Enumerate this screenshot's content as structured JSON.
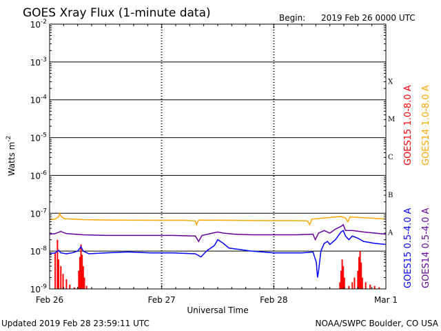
{
  "chart_data": {
    "type": "line",
    "title": "GOES Xray Flux (1-minute data)",
    "begin_label": "Begin:",
    "begin_value": "2019 Feb 26 0000 UTC",
    "xlabel": "Universal Time",
    "ylabel": "Watts m",
    "ylabel_exp": "-2",
    "y_scale": "log",
    "ylim": [
      1e-09,
      0.01
    ],
    "xlim": [
      "2019-02-26 00:00",
      "2019-03-01 00:00"
    ],
    "x_ticks": [
      {
        "label": "Feb 26",
        "day": 0
      },
      {
        "label": "Feb 27",
        "day": 1
      },
      {
        "label": "Feb 28",
        "day": 2
      },
      {
        "label": "Mar 1",
        "day": 3
      }
    ],
    "y_ticks": [
      {
        "base": "10",
        "exp": "-2",
        "value": 0.01
      },
      {
        "base": "10",
        "exp": "-3",
        "value": 0.001
      },
      {
        "base": "10",
        "exp": "-4",
        "value": 0.0001
      },
      {
        "base": "10",
        "exp": "-5",
        "value": 1e-05
      },
      {
        "base": "10",
        "exp": "-6",
        "value": 1e-06
      },
      {
        "base": "10",
        "exp": "-7",
        "value": 1e-07
      },
      {
        "base": "10",
        "exp": "-8",
        "value": 1e-08
      },
      {
        "base": "10",
        "exp": "-9",
        "value": 1e-09
      }
    ],
    "flare_classes": [
      {
        "label": "X",
        "value": 0.000316
      },
      {
        "label": "M",
        "value": 3.16e-05
      },
      {
        "label": "C",
        "value": 3.16e-06
      },
      {
        "label": "B",
        "value": 3.16e-07
      },
      {
        "label": "A",
        "value": 3.16e-08
      }
    ],
    "series": [
      {
        "name": "GOES15 1.0-8.0 A",
        "color": "#ff0000",
        "style": "impulses",
        "points": [
          [
            0.05,
            9e-09
          ],
          [
            0.07,
            2e-08
          ],
          [
            0.08,
            6e-09
          ],
          [
            0.1,
            4e-09
          ],
          [
            0.12,
            2.5e-09
          ],
          [
            0.15,
            1.8e-09
          ],
          [
            0.18,
            1.3e-09
          ],
          [
            0.22,
            1.1e-09
          ],
          [
            0.26,
            3e-09
          ],
          [
            0.27,
            7e-09
          ],
          [
            0.28,
            1.5e-08
          ],
          [
            0.29,
            8e-09
          ],
          [
            0.3,
            4e-09
          ],
          [
            0.31,
            2e-09
          ],
          [
            0.33,
            1.2e-09
          ],
          [
            2.59,
            1.5e-09
          ],
          [
            2.6,
            3e-09
          ],
          [
            2.61,
            6e-09
          ],
          [
            2.62,
            4e-09
          ],
          [
            2.63,
            2e-09
          ],
          [
            2.67,
            1.2e-09
          ],
          [
            2.7,
            1.5e-09
          ],
          [
            2.72,
            2e-09
          ],
          [
            2.75,
            3e-09
          ],
          [
            2.76,
            7e-09
          ],
          [
            2.77,
            1e-08
          ],
          [
            2.78,
            5e-09
          ],
          [
            2.79,
            2e-09
          ],
          [
            2.82,
            1.5e-09
          ],
          [
            2.86,
            1.3e-09
          ],
          [
            2.9,
            1.2e-09
          ],
          [
            2.94,
            1.1e-09
          ]
        ]
      },
      {
        "name": "GOES14 1.0-8.0 A",
        "color": "#ffa500",
        "style": "line",
        "points": [
          [
            0.0,
            6.8e-08
          ],
          [
            0.05,
            7e-08
          ],
          [
            0.08,
            8e-08
          ],
          [
            0.09,
            1e-07
          ],
          [
            0.1,
            8.5e-08
          ],
          [
            0.13,
            7.2e-08
          ],
          [
            0.3,
            6.8e-08
          ],
          [
            0.6,
            6.6e-08
          ],
          [
            0.95,
            6.5e-08
          ],
          [
            1.2,
            6.5e-08
          ],
          [
            1.3,
            6.3e-08
          ],
          [
            1.31,
            5e-08
          ],
          [
            1.33,
            6.6e-08
          ],
          [
            1.6,
            6.5e-08
          ],
          [
            1.9,
            6.4e-08
          ],
          [
            2.15,
            6.4e-08
          ],
          [
            2.3,
            6.3e-08
          ],
          [
            2.32,
            5e-08
          ],
          [
            2.34,
            7e-08
          ],
          [
            2.45,
            7.5e-08
          ],
          [
            2.55,
            8e-08
          ],
          [
            2.6,
            8.2e-08
          ],
          [
            2.64,
            7.5e-08
          ],
          [
            2.66,
            6e-08
          ],
          [
            2.68,
            8e-08
          ],
          [
            2.75,
            7.8e-08
          ],
          [
            2.85,
            7.5e-08
          ],
          [
            2.95,
            7.2e-08
          ],
          [
            3.0,
            7e-08
          ]
        ]
      },
      {
        "name": "GOES15 0.5-4.0 A",
        "color": "#0000ff",
        "style": "line",
        "points": [
          [
            0.0,
            8.5e-09
          ],
          [
            0.05,
            9e-09
          ],
          [
            0.08,
            1.05e-08
          ],
          [
            0.1,
            9e-09
          ],
          [
            0.15,
            8.5e-09
          ],
          [
            0.2,
            9e-09
          ],
          [
            0.25,
            1e-08
          ],
          [
            0.28,
            1.3e-08
          ],
          [
            0.3,
            1e-08
          ],
          [
            0.35,
            8.5e-09
          ],
          [
            0.5,
            9e-09
          ],
          [
            0.7,
            9.5e-09
          ],
          [
            0.9,
            9e-09
          ],
          [
            1.1,
            9e-09
          ],
          [
            1.3,
            8.5e-09
          ],
          [
            1.35,
            7e-09
          ],
          [
            1.4,
            1e-08
          ],
          [
            1.47,
            1.4e-08
          ],
          [
            1.5,
            2e-08
          ],
          [
            1.55,
            1.6e-08
          ],
          [
            1.6,
            1.2e-08
          ],
          [
            1.7,
            1.1e-08
          ],
          [
            1.8,
            1e-08
          ],
          [
            1.9,
            9.5e-09
          ],
          [
            2.0,
            9e-09
          ],
          [
            2.1,
            9e-09
          ],
          [
            2.25,
            9e-09
          ],
          [
            2.35,
            9.5e-09
          ],
          [
            2.38,
            5e-09
          ],
          [
            2.39,
            2e-09
          ],
          [
            2.4,
            3e-09
          ],
          [
            2.42,
            1e-08
          ],
          [
            2.45,
            1.6e-08
          ],
          [
            2.48,
            1.8e-08
          ],
          [
            2.5,
            1.5e-08
          ],
          [
            2.55,
            2e-08
          ],
          [
            2.6,
            3.2e-08
          ],
          [
            2.62,
            3.5e-08
          ],
          [
            2.64,
            2.5e-08
          ],
          [
            2.67,
            2e-08
          ],
          [
            2.7,
            2.5e-08
          ],
          [
            2.75,
            2.2e-08
          ],
          [
            2.8,
            1.8e-08
          ],
          [
            2.9,
            1.6e-08
          ],
          [
            3.0,
            1.5e-08
          ]
        ]
      },
      {
        "name": "GOES14 0.5-4.0 A",
        "color": "#660099",
        "style": "line",
        "points": [
          [
            0.0,
            2.8e-08
          ],
          [
            0.05,
            2.9e-08
          ],
          [
            0.1,
            3.3e-08
          ],
          [
            0.15,
            2.9e-08
          ],
          [
            0.3,
            2.7e-08
          ],
          [
            0.5,
            2.6e-08
          ],
          [
            0.8,
            2.6e-08
          ],
          [
            1.1,
            2.6e-08
          ],
          [
            1.3,
            2.5e-08
          ],
          [
            1.33,
            1.8e-08
          ],
          [
            1.36,
            2.6e-08
          ],
          [
            1.5,
            3.2e-08
          ],
          [
            1.55,
            3e-08
          ],
          [
            1.65,
            2.8e-08
          ],
          [
            1.8,
            2.7e-08
          ],
          [
            2.0,
            2.7e-08
          ],
          [
            2.2,
            2.7e-08
          ],
          [
            2.35,
            2.8e-08
          ],
          [
            2.37,
            2e-08
          ],
          [
            2.4,
            3e-08
          ],
          [
            2.45,
            3.5e-08
          ],
          [
            2.5,
            3e-08
          ],
          [
            2.55,
            3.8e-08
          ],
          [
            2.6,
            4.5e-08
          ],
          [
            2.62,
            5e-08
          ],
          [
            2.64,
            3.5e-08
          ],
          [
            2.7,
            3.5e-08
          ],
          [
            2.8,
            3.2e-08
          ],
          [
            2.9,
            3e-08
          ],
          [
            3.0,
            2.8e-08
          ]
        ]
      }
    ]
  },
  "footer": {
    "updated": "Updated 2019 Feb 28 23:59:11 UTC",
    "credit": "NOAA/SWPC Boulder, CO USA"
  }
}
